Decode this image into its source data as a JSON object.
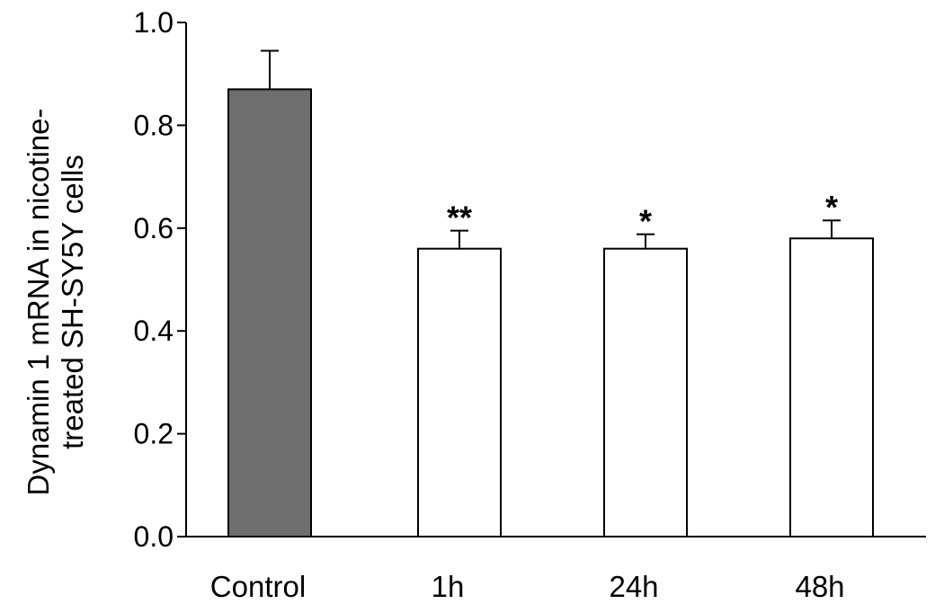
{
  "chart_data": {
    "type": "bar",
    "categories": [
      "Control",
      "1h",
      "24h",
      "48h"
    ],
    "values": [
      0.87,
      0.56,
      0.56,
      0.58
    ],
    "errors": [
      0.075,
      0.035,
      0.028,
      0.035
    ],
    "significance": [
      "",
      "**",
      "*",
      "*"
    ],
    "bar_colors": [
      "#6e6e6e",
      "#ffffff",
      "#ffffff",
      "#ffffff"
    ],
    "ylabel_lines": [
      "Dynamin 1 mRNA in nicotine-",
      "treated SH-SY5Y cells"
    ],
    "xlabel": "",
    "ylim": [
      0,
      1.0
    ],
    "yticks": [
      0.0,
      0.2,
      0.4,
      0.6,
      0.8,
      1.0
    ],
    "ytick_labels": [
      "0.0",
      "0.2",
      "0.4",
      "0.6",
      "0.8",
      "1.0"
    ],
    "grid": false,
    "legend": "none"
  }
}
